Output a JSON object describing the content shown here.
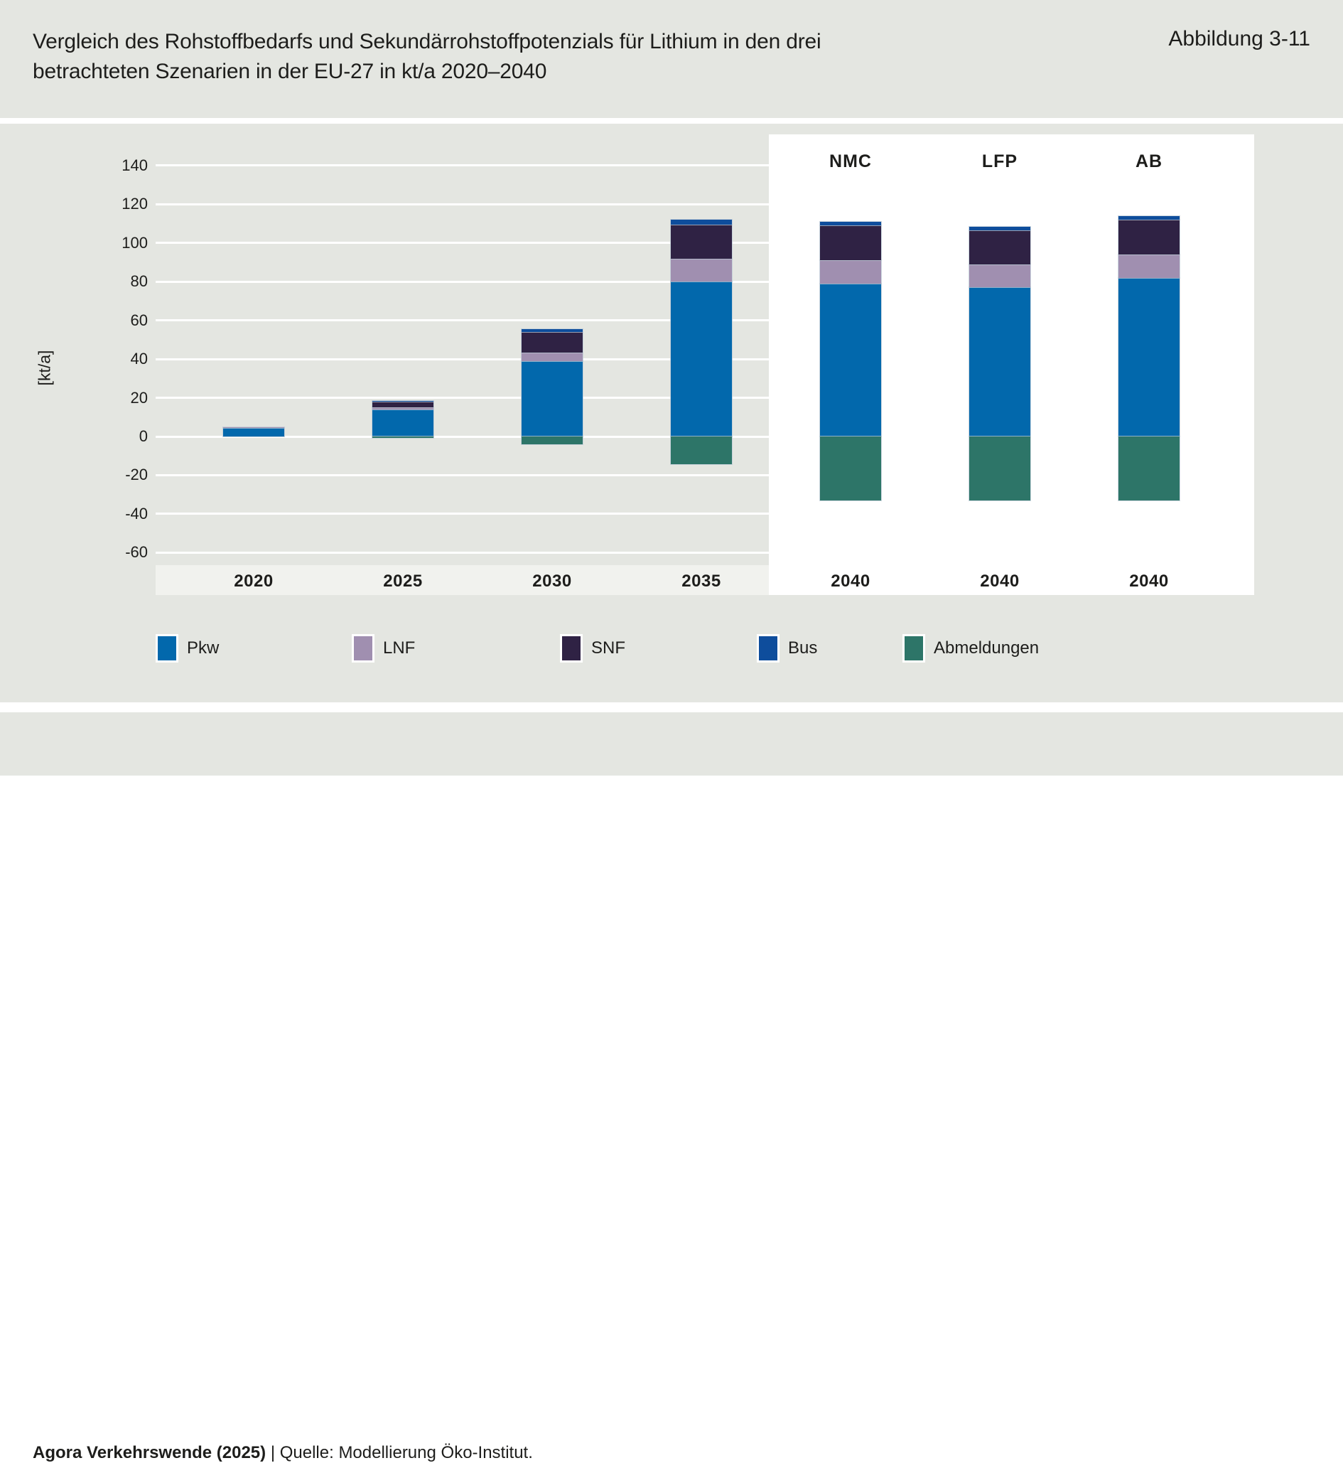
{
  "header": {
    "title_line1": "Vergleich des Rohstoffbedarfs und Sekundärrohstoffpotenzials für Lithium in den drei",
    "title_line2": "betrachteten Szenarien in der EU-27 in kt/a 2020–2040",
    "figure_label": "Abbildung 3-11"
  },
  "chart_data": {
    "type": "bar",
    "stacked": true,
    "title": "Vergleich des Rohstoffbedarfs und Sekundärrohstoffpotenzials für Lithium in den drei betrachteten Szenarien in der EU-27 in kt/a 2020–2040",
    "ylabel": "[kt/a]",
    "ylim": [
      -60,
      140
    ],
    "yticks": [
      140,
      120,
      100,
      80,
      60,
      40,
      20,
      0,
      -20,
      -40,
      -60
    ],
    "grid": true,
    "legend_position": "bottom",
    "categories": [
      "2020",
      "2025",
      "2030",
      "2035",
      "2040",
      "2040",
      "2040"
    ],
    "scenario_labels": [
      "NMC",
      "LFP",
      "AB"
    ],
    "series": [
      {
        "name": "Pkw",
        "color": "#0268ac",
        "values": [
          4.5,
          14,
          39,
          80,
          79,
          77,
          82
        ]
      },
      {
        "name": "LNF",
        "color": "#a08fb0",
        "values": [
          0.3,
          1,
          4.5,
          12,
          12,
          12,
          12
        ]
      },
      {
        "name": "SNF",
        "color": "#2f2244",
        "values": [
          0,
          3,
          10.5,
          17.5,
          18,
          17.5,
          18
        ]
      },
      {
        "name": "Bus",
        "color": "#0e4d9c",
        "values": [
          0,
          0.4,
          1.5,
          2.5,
          2,
          2,
          2
        ]
      },
      {
        "name": "Abmeldungen",
        "color": "#2d7568",
        "values": [
          0,
          -0.7,
          -4,
          -14.5,
          -33,
          -33,
          -33
        ]
      }
    ],
    "legend": [
      "Pkw",
      "LNF",
      "SNF",
      "Bus",
      "Abmeldungen"
    ]
  },
  "footer": {
    "source_bold": "Agora Verkehrswende (2025)",
    "source_rest": " | Quelle: Modellierung Öko-Institut."
  },
  "colors": {
    "background": "#e4e6e1",
    "axis_strip": "#f1f2ee",
    "panel": "#ffffff",
    "text": "#1d1d1b"
  }
}
